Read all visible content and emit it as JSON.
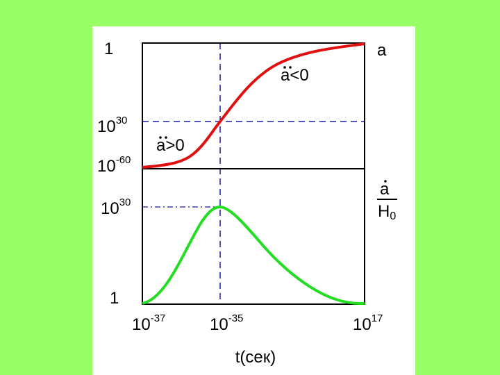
{
  "top_panel": {
    "curve_label": "a",
    "y_labels": [
      {
        "base": "1"
      },
      {
        "base": "10",
        "exp": "30"
      },
      {
        "base": "10",
        "exp": "-60"
      }
    ],
    "annotations": [
      "<0",
      ">0"
    ]
  },
  "bottom_panel": {
    "curve_label": {
      "numerator": "a",
      "denominator": "H",
      "subscript": "0"
    },
    "y_labels": [
      {
        "base": "10",
        "exp": "30"
      },
      {
        "base": "1"
      }
    ]
  },
  "x_axis": {
    "labels": [
      {
        "base": "10",
        "exp": "-37"
      },
      {
        "base": "10",
        "exp": "-35"
      },
      {
        "base": "10",
        "exp": "17"
      }
    ],
    "title": "t(сек)"
  }
}
